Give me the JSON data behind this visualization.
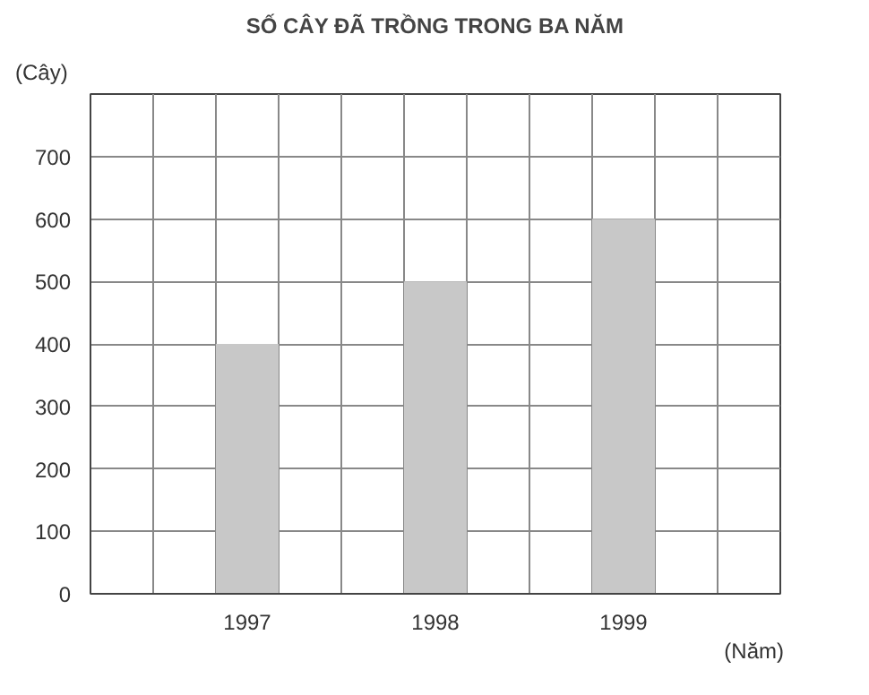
{
  "chart_data": {
    "type": "bar",
    "title": "SỐ CÂY ĐÃ TRỒNG TRONG BA NĂM",
    "xlabel": "(Năm)",
    "ylabel": "(Cây)",
    "categories": [
      "1997",
      "1998",
      "1999"
    ],
    "values": [
      400,
      500,
      600
    ],
    "color": "#c8c8c8",
    "ylim": [
      0,
      800
    ],
    "yticks": [
      0,
      100,
      200,
      300,
      400,
      500,
      600,
      700,
      {
        "value": 800,
        "label": null
      }
    ],
    "grid": true
  }
}
